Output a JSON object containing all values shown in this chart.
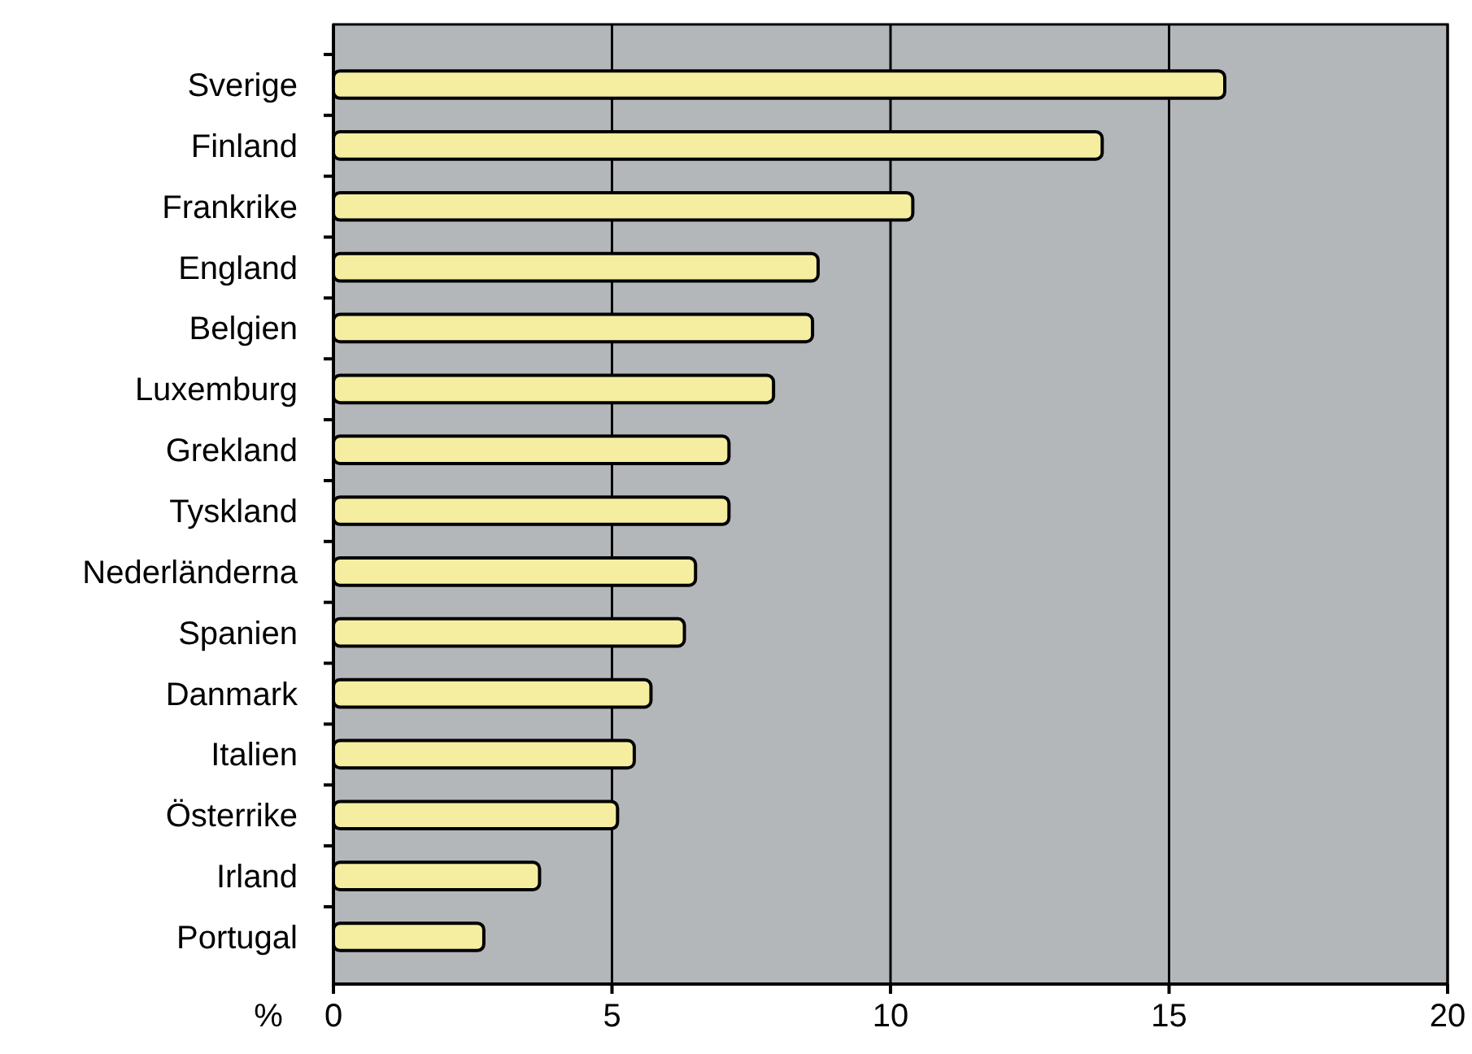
{
  "chart_data": {
    "type": "bar",
    "orientation": "horizontal",
    "xlabel": "%",
    "categories": [
      "Sverige",
      "Finland",
      "Frankrike",
      "England",
      "Belgien",
      "Luxemburg",
      "Grekland",
      "Tyskland",
      "Nederländerna",
      "Spanien",
      "Danmark",
      "Italien",
      "Österrike",
      "Irland",
      "Portugal"
    ],
    "values": [
      16.0,
      13.8,
      10.4,
      8.7,
      8.6,
      7.9,
      7.1,
      7.1,
      6.5,
      6.3,
      5.7,
      5.4,
      5.1,
      3.7,
      2.7
    ],
    "color": "#f5eea0",
    "xlim": [
      0,
      20
    ],
    "xticks": [
      0,
      5,
      10,
      15,
      20
    ],
    "grid": "x"
  }
}
